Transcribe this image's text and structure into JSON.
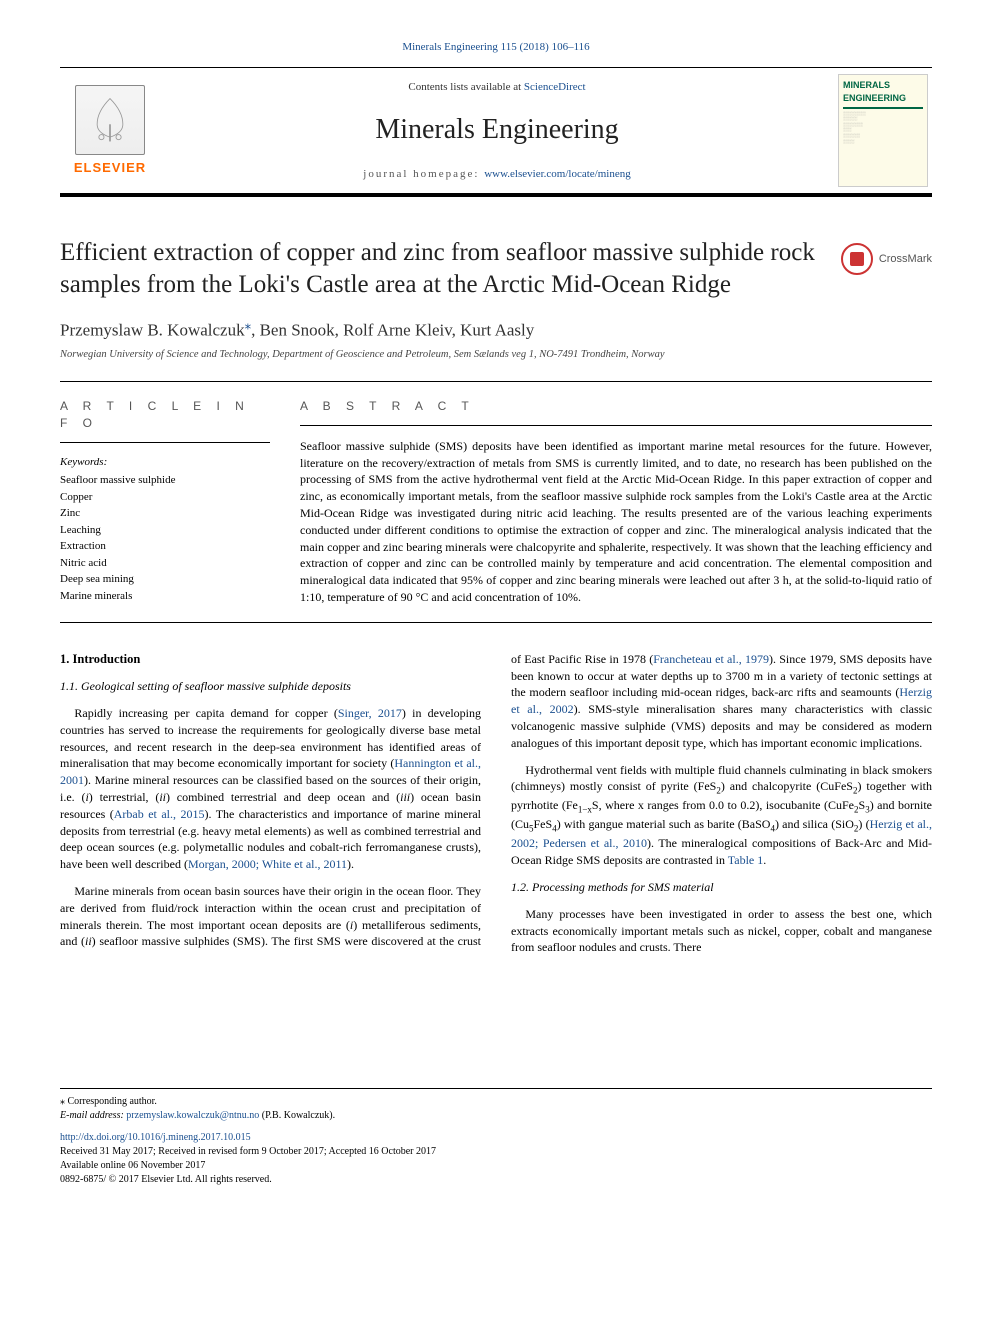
{
  "top_citation": "Minerals Engineering 115 (2018) 106–116",
  "masthead": {
    "contents_prefix": "Contents lists available at ",
    "contents_link": "ScienceDirect",
    "journal": "Minerals Engineering",
    "homepage_prefix": "journal homepage: ",
    "homepage_url": "www.elsevier.com/locate/mineng",
    "publisher": "ELSEVIER",
    "cover_title": "MINERALS ENGINEERING"
  },
  "crossmark": "CrossMark",
  "title": "Efficient extraction of copper and zinc from seafloor massive sulphide rock samples from the Loki's Castle area at the Arctic Mid-Ocean Ridge",
  "authors": "Przemyslaw B. Kowalczuk",
  "authors_rest": ", Ben Snook, Rolf Arne Kleiv, Kurt Aasly",
  "corr_mark": "⁎",
  "affiliation": "Norwegian University of Science and Technology, Department of Geoscience and Petroleum, Sem Sælands veg 1, NO-7491 Trondheim, Norway",
  "article_info_head": "A R T I C L E  I N F O",
  "abstract_head": "A B S T R A C T",
  "keywords_label": "Keywords:",
  "keywords": [
    "Seafloor massive sulphide",
    "Copper",
    "Zinc",
    "Leaching",
    "Extraction",
    "Nitric acid",
    "Deep sea mining",
    "Marine minerals"
  ],
  "abstract": "Seafloor massive sulphide (SMS) deposits have been identified as important marine metal resources for the future. However, literature on the recovery/extraction of metals from SMS is currently limited, and to date, no research has been published on the processing of SMS from the active hydrothermal vent field at the Arctic Mid-Ocean Ridge. In this paper extraction of copper and zinc, as economically important metals, from the seafloor massive sulphide rock samples from the Loki's Castle area at the Arctic Mid-Ocean Ridge was investigated during nitric acid leaching. The results presented are of the various leaching experiments conducted under different conditions to optimise the extraction of copper and zinc. The mineralogical analysis indicated that the main copper and zinc bearing minerals were chalcopyrite and sphalerite, respectively. It was shown that the leaching efficiency and extraction of copper and zinc can be controlled mainly by temperature and acid concentration. The elemental composition and mineralogical data indicated that 95% of copper and zinc bearing minerals were leached out after 3 h, at the solid-to-liquid ratio of 1:10, temperature of 90 °C and acid concentration of 10%.",
  "body": {
    "h_intro": "1. Introduction",
    "h_11": "1.1. Geological setting of seafloor massive sulphide deposits",
    "p1a": "Rapidly increasing per capita demand for copper (",
    "ref_singer": "Singer, 2017",
    "p1b": ") in developing countries has served to increase the requirements for geologically diverse base metal resources, and recent research in the deep-sea environment has identified areas of mineralisation that may become economically important for society (",
    "ref_hann": "Hannington et al., 2001",
    "p1c": "). Marine mineral resources can be classified based on the sources of their origin, i.e. (",
    "i1": "i",
    "p1d": ") terrestrial, (",
    "i2": "ii",
    "p1e": ") combined terrestrial and deep ocean and (",
    "i3": "iii",
    "p1f": ") ocean basin resources (",
    "ref_arbab": "Arbab et al., 2015",
    "p1g": "). The characteristics and importance of marine mineral deposits from terrestrial (e.g. heavy metal elements) as well as combined terrestrial and deep ocean sources (e.g. polymetallic nodules and cobalt-rich ferromanganese crusts), have been well described (",
    "ref_morgan": "Morgan, 2000; White et al., 2011",
    "p1h": ").",
    "p2a": "Marine minerals from ocean basin sources have their origin in the ocean floor. They are derived from fluid/rock interaction within the ocean crust and precipitation of minerals therein. The most important ocean deposits are (",
    "p2b": ") metalliferous sediments, and (",
    "p2c": ") seafloor massive sulphides (SMS). The first SMS were discovered at the crust of East Pacific Rise in 1978 (",
    "ref_franch": "Francheteau et al., 1979",
    "p2d": "). Since 1979, SMS deposits have been known to occur at water depths up to 3700 m in a variety of tectonic settings at the modern seafloor including mid-ocean ridges, back-arc rifts and seamounts (",
    "ref_herzig1": "Herzig et al., 2002",
    "p2e": "). SMS-style mineralisation shares many characteristics with classic volcanogenic massive sulphide (VMS) deposits and may be considered as modern analogues of this important deposit type, which has important economic implications.",
    "p3a": "Hydrothermal vent fields with multiple fluid channels culminating in black smokers (chimneys) mostly consist of pyrite (FeS",
    "p3b": ") and chalcopyrite (CuFeS",
    "p3c": ") together with pyrrhotite (Fe",
    "p3c2": "S, where x ranges from 0.0 to 0.2), isocubanite (CuFe",
    "p3d": "S",
    "p3e": ") and bornite (Cu",
    "p3f": "FeS",
    "p3g": ") with gangue material such as barite (BaSO",
    "p3h": ") and silica (SiO",
    "p3i": ") (",
    "ref_herzig2": "Herzig et al., 2002; Pedersen et al., 2010",
    "p3j": "). The mineralogical compositions of Back-Arc and Mid-Ocean Ridge SMS deposits are contrasted in ",
    "ref_table1": "Table 1",
    "p3k": ".",
    "h_12": "1.2. Processing methods for SMS material",
    "p4": "Many processes have been investigated in order to assess the best one, which extracts economically important metals such as nickel, copper, cobalt and manganese from seafloor nodules and crusts. There"
  },
  "footer": {
    "corr": "⁎ Corresponding author.",
    "email_label": "E-mail address: ",
    "email": "przemyslaw.kowalczuk@ntnu.no",
    "email_suffix": " (P.B. Kowalczuk).",
    "doi": "http://dx.doi.org/10.1016/j.mineng.2017.10.015",
    "received": "Received 31 May 2017; Received in revised form 9 October 2017; Accepted 16 October 2017",
    "online": "Available online 06 November 2017",
    "copyright": "0892-6875/ © 2017 Elsevier Ltd. All rights reserved."
  },
  "colors": {
    "link": "#1a4f8f",
    "elsevier_orange": "#ff6a00",
    "cover_green": "#064",
    "crossmark_red": "#c33"
  }
}
